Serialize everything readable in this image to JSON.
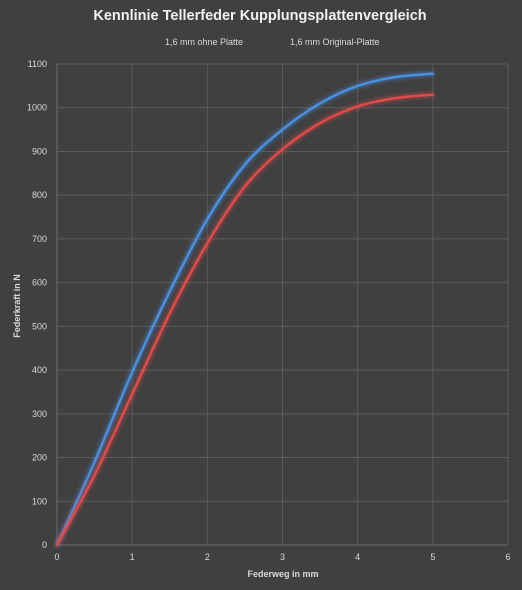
{
  "chart_data": {
    "type": "line",
    "title": "Kennlinie Tellerfeder Kupplungsplattenvergleich",
    "xlabel": "Federweg in mm",
    "ylabel": "Federkraft in N",
    "xlim": [
      0,
      6
    ],
    "ylim": [
      0,
      1100
    ],
    "xticks": [
      0,
      1,
      2,
      3,
      4,
      5,
      6
    ],
    "yticks": [
      0,
      100,
      200,
      300,
      400,
      500,
      600,
      700,
      800,
      900,
      1000,
      1100
    ],
    "grid": true,
    "legend_position": "top",
    "x": [
      0,
      0.5,
      1,
      1.5,
      2,
      2.5,
      3,
      3.5,
      4,
      4.5,
      5
    ],
    "series": [
      {
        "name": "1,6 mm ohne Platte",
        "color": "#4a90e2",
        "values": [
          0,
          190,
          395,
          580,
          745,
          870,
          950,
          1010,
          1050,
          1070,
          1078
        ]
      },
      {
        "name": "1,6 mm Original-Platte",
        "color": "#e24a4a",
        "values": [
          0,
          160,
          345,
          530,
          690,
          820,
          905,
          965,
          1003,
          1022,
          1030
        ]
      }
    ]
  }
}
